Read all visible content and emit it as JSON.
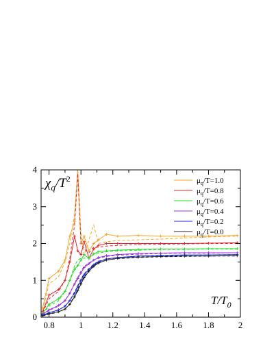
{
  "chart_data": {
    "type": "line",
    "title": "",
    "ylabel_main": "χ",
    "ylabel_sub": "q",
    "ylabel_rest": "/T",
    "ylabel_sup": "2",
    "xlabel_main": "T/T",
    "xlabel_sub": "0",
    "xlim": [
      0.75,
      2.0
    ],
    "ylim": [
      0,
      4
    ],
    "xticks": [
      0.8,
      1.0,
      1.2,
      1.4,
      1.6,
      1.8,
      2.0
    ],
    "xtick_labels": [
      "0.8",
      "1",
      "1.2",
      "1.4",
      "1.6",
      "1.8",
      "2"
    ],
    "yticks": [
      0,
      1,
      2,
      3,
      4
    ],
    "ytick_labels": [
      "0",
      "1",
      "2",
      "3",
      "4"
    ],
    "legend_placement": "top-right",
    "series": [
      {
        "label_mu": "μ",
        "label_sub": "q",
        "label_rest": "/T=1.0",
        "color": "#f5a623",
        "x": [
          0.76,
          0.8,
          0.86,
          0.9,
          0.93,
          0.96,
          0.98,
          1.0,
          1.02,
          1.05,
          1.08,
          1.11,
          1.16,
          1.23,
          1.36,
          1.5,
          1.65,
          1.8,
          1.98
        ],
        "y": [
          0.25,
          1.05,
          1.25,
          1.55,
          2.2,
          2.6,
          4.0,
          2.0,
          2.2,
          1.8,
          2.0,
          2.1,
          2.25,
          2.2,
          2.22,
          2.2,
          2.2,
          2.2,
          2.22
        ],
        "dashed_y": [
          0.2,
          0.9,
          1.1,
          1.5,
          2.0,
          2.8,
          4.0,
          2.3,
          1.7,
          2.1,
          2.5,
          2.0,
          2.05,
          2.08,
          2.1,
          2.12,
          2.15,
          2.18,
          2.2
        ]
      },
      {
        "label_mu": "μ",
        "label_sub": "q",
        "label_rest": "/T=0.8",
        "color": "#e8202a",
        "x": [
          0.76,
          0.8,
          0.86,
          0.9,
          0.93,
          0.96,
          0.98,
          1.0,
          1.02,
          1.05,
          1.08,
          1.11,
          1.16,
          1.23,
          1.36,
          1.5,
          1.65,
          1.8,
          1.98
        ],
        "y": [
          0.15,
          0.6,
          0.75,
          1.0,
          1.5,
          2.2,
          1.8,
          1.7,
          2.05,
          1.6,
          1.85,
          1.95,
          2.0,
          2.0,
          2.0,
          2.0,
          2.0,
          2.01,
          2.02
        ],
        "dashed_y": [
          0.12,
          0.5,
          0.7,
          1.0,
          1.6,
          2.5,
          3.9,
          2.0,
          1.85,
          1.75,
          1.9,
          1.9,
          1.93,
          1.95,
          1.97,
          1.98,
          1.99,
          2.0,
          2.0
        ]
      },
      {
        "label_mu": "μ",
        "label_sub": "q",
        "label_rest": "/T=0.6",
        "color": "#22dd22",
        "x": [
          0.76,
          0.8,
          0.86,
          0.9,
          0.93,
          0.96,
          0.98,
          1.0,
          1.02,
          1.05,
          1.08,
          1.11,
          1.16,
          1.23,
          1.36,
          1.5,
          1.65,
          1.8,
          1.98
        ],
        "y": [
          0.1,
          0.35,
          0.5,
          0.7,
          1.0,
          1.3,
          1.4,
          1.55,
          1.7,
          1.6,
          1.72,
          1.78,
          1.8,
          1.82,
          1.84,
          1.85,
          1.85,
          1.86,
          1.86
        ],
        "dashed_y": [
          0.08,
          0.3,
          0.45,
          0.7,
          1.0,
          1.4,
          1.55,
          1.6,
          1.6,
          1.62,
          1.7,
          1.74,
          1.78,
          1.8,
          1.82,
          1.84,
          1.84,
          1.85,
          1.85
        ]
      },
      {
        "label_mu": "μ",
        "label_sub": "q",
        "label_rest": "/T=0.4",
        "color": "#9b30e0",
        "x": [
          0.76,
          0.8,
          0.86,
          0.9,
          0.93,
          0.96,
          0.98,
          1.0,
          1.02,
          1.05,
          1.08,
          1.11,
          1.16,
          1.23,
          1.36,
          1.5,
          1.65,
          1.8,
          1.98
        ],
        "y": [
          0.08,
          0.2,
          0.32,
          0.45,
          0.65,
          0.9,
          1.05,
          1.2,
          1.35,
          1.45,
          1.55,
          1.62,
          1.67,
          1.7,
          1.73,
          1.74,
          1.75,
          1.75,
          1.75
        ],
        "dashed_y": [
          0.06,
          0.18,
          0.3,
          0.45,
          0.65,
          0.92,
          1.08,
          1.25,
          1.38,
          1.47,
          1.55,
          1.6,
          1.65,
          1.68,
          1.71,
          1.73,
          1.74,
          1.74,
          1.75
        ]
      },
      {
        "label_mu": "μ",
        "label_sub": "q",
        "label_rest": "/T=0.2",
        "color": "#2230dd",
        "x": [
          0.76,
          0.8,
          0.86,
          0.9,
          0.93,
          0.96,
          0.98,
          1.0,
          1.02,
          1.05,
          1.08,
          1.11,
          1.16,
          1.23,
          1.36,
          1.5,
          1.65,
          1.8,
          1.98
        ],
        "y": [
          0.06,
          0.12,
          0.2,
          0.3,
          0.45,
          0.65,
          0.82,
          1.0,
          1.15,
          1.3,
          1.42,
          1.5,
          1.58,
          1.62,
          1.66,
          1.68,
          1.69,
          1.69,
          1.7
        ],
        "dashed_y": [
          0.05,
          0.11,
          0.19,
          0.3,
          0.46,
          0.68,
          0.86,
          1.04,
          1.18,
          1.32,
          1.44,
          1.52,
          1.58,
          1.62,
          1.65,
          1.67,
          1.68,
          1.69,
          1.7
        ]
      },
      {
        "label_mu": "μ",
        "label_sub": "q",
        "label_rest": "/T=0.0",
        "color": "#222222",
        "x": [
          0.76,
          0.8,
          0.86,
          0.9,
          0.93,
          0.96,
          0.98,
          1.0,
          1.02,
          1.05,
          1.08,
          1.11,
          1.16,
          1.23,
          1.36,
          1.5,
          1.65,
          1.8,
          1.98
        ],
        "y": [
          0.04,
          0.09,
          0.15,
          0.22,
          0.35,
          0.55,
          0.72,
          0.9,
          1.07,
          1.25,
          1.38,
          1.47,
          1.55,
          1.6,
          1.63,
          1.65,
          1.66,
          1.66,
          1.67
        ],
        "dashed_y": [
          0.03,
          0.08,
          0.14,
          0.22,
          0.36,
          0.58,
          0.76,
          0.95,
          1.1,
          1.27,
          1.4,
          1.48,
          1.55,
          1.59,
          1.62,
          1.64,
          1.65,
          1.66,
          1.66
        ]
      }
    ]
  }
}
